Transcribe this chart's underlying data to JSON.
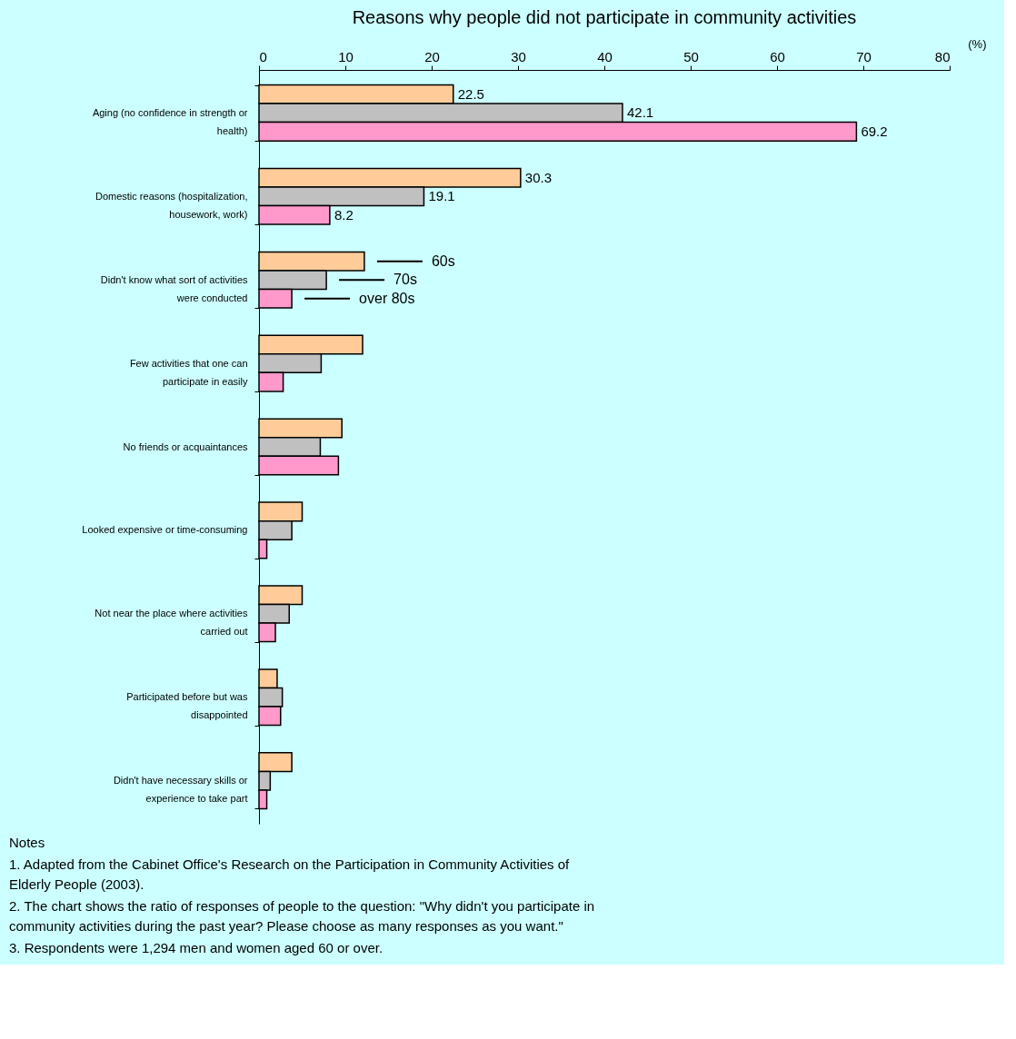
{
  "chart_data": {
    "type": "bar",
    "orientation": "horizontal",
    "title": "Reasons why people did not participate in community activities",
    "xlabel": "(%)",
    "categories": [
      "Aging (no confidence in strength or health)",
      "Domestic reasons (hospitalization, housework, work)",
      "Didn't know what sort of activities were conducted",
      "Few activities that one can participate in easily",
      "No friends or acquaintances",
      "Looked expensive or time-consuming",
      "Not near the place where activities carried out",
      "Participated before but was disappointed",
      "Didn't have necessary skills or experience to take part"
    ],
    "series": [
      {
        "name": "60s",
        "color": "#ffcc99",
        "values": [
          22.5,
          30.3,
          12.2,
          12.0,
          9.6,
          5.0,
          5.0,
          2.1,
          3.8
        ],
        "value_labels": [
          "22.5",
          "30.3",
          null,
          null,
          null,
          null,
          null,
          null,
          null
        ]
      },
      {
        "name": "70s",
        "color": "#c0c0c0",
        "values": [
          42.1,
          19.1,
          7.8,
          7.2,
          7.1,
          3.8,
          3.5,
          2.7,
          1.3
        ],
        "value_labels": [
          "42.1",
          "19.1",
          null,
          null,
          null,
          null,
          null,
          null,
          null
        ]
      },
      {
        "name": "over 80s",
        "color": "#ff99cc",
        "values": [
          69.2,
          8.2,
          3.8,
          2.8,
          9.2,
          0.9,
          1.9,
          2.5,
          0.9
        ],
        "value_labels": [
          "69.2",
          "8.2",
          null,
          null,
          null,
          null,
          null,
          null,
          null
        ]
      }
    ],
    "xlim": [
      0,
      80
    ],
    "xticks": [
      0,
      10,
      20,
      30,
      40,
      50,
      60,
      70,
      80
    ],
    "grid": false,
    "legend": "top left",
    "annotations": [
      "Notes",
      "1. Adapted from the Cabinet Office's Research on the Participation in Community Activities of Elderly People (2003).",
      "2. The chart shows the ratio of responses of people to the question: \"Why didn't you participate in community activities during the past year? Please choose as many responses as you want.\"",
      "3. Respondents were 1,294 men and women aged 60 or over."
    ]
  }
}
